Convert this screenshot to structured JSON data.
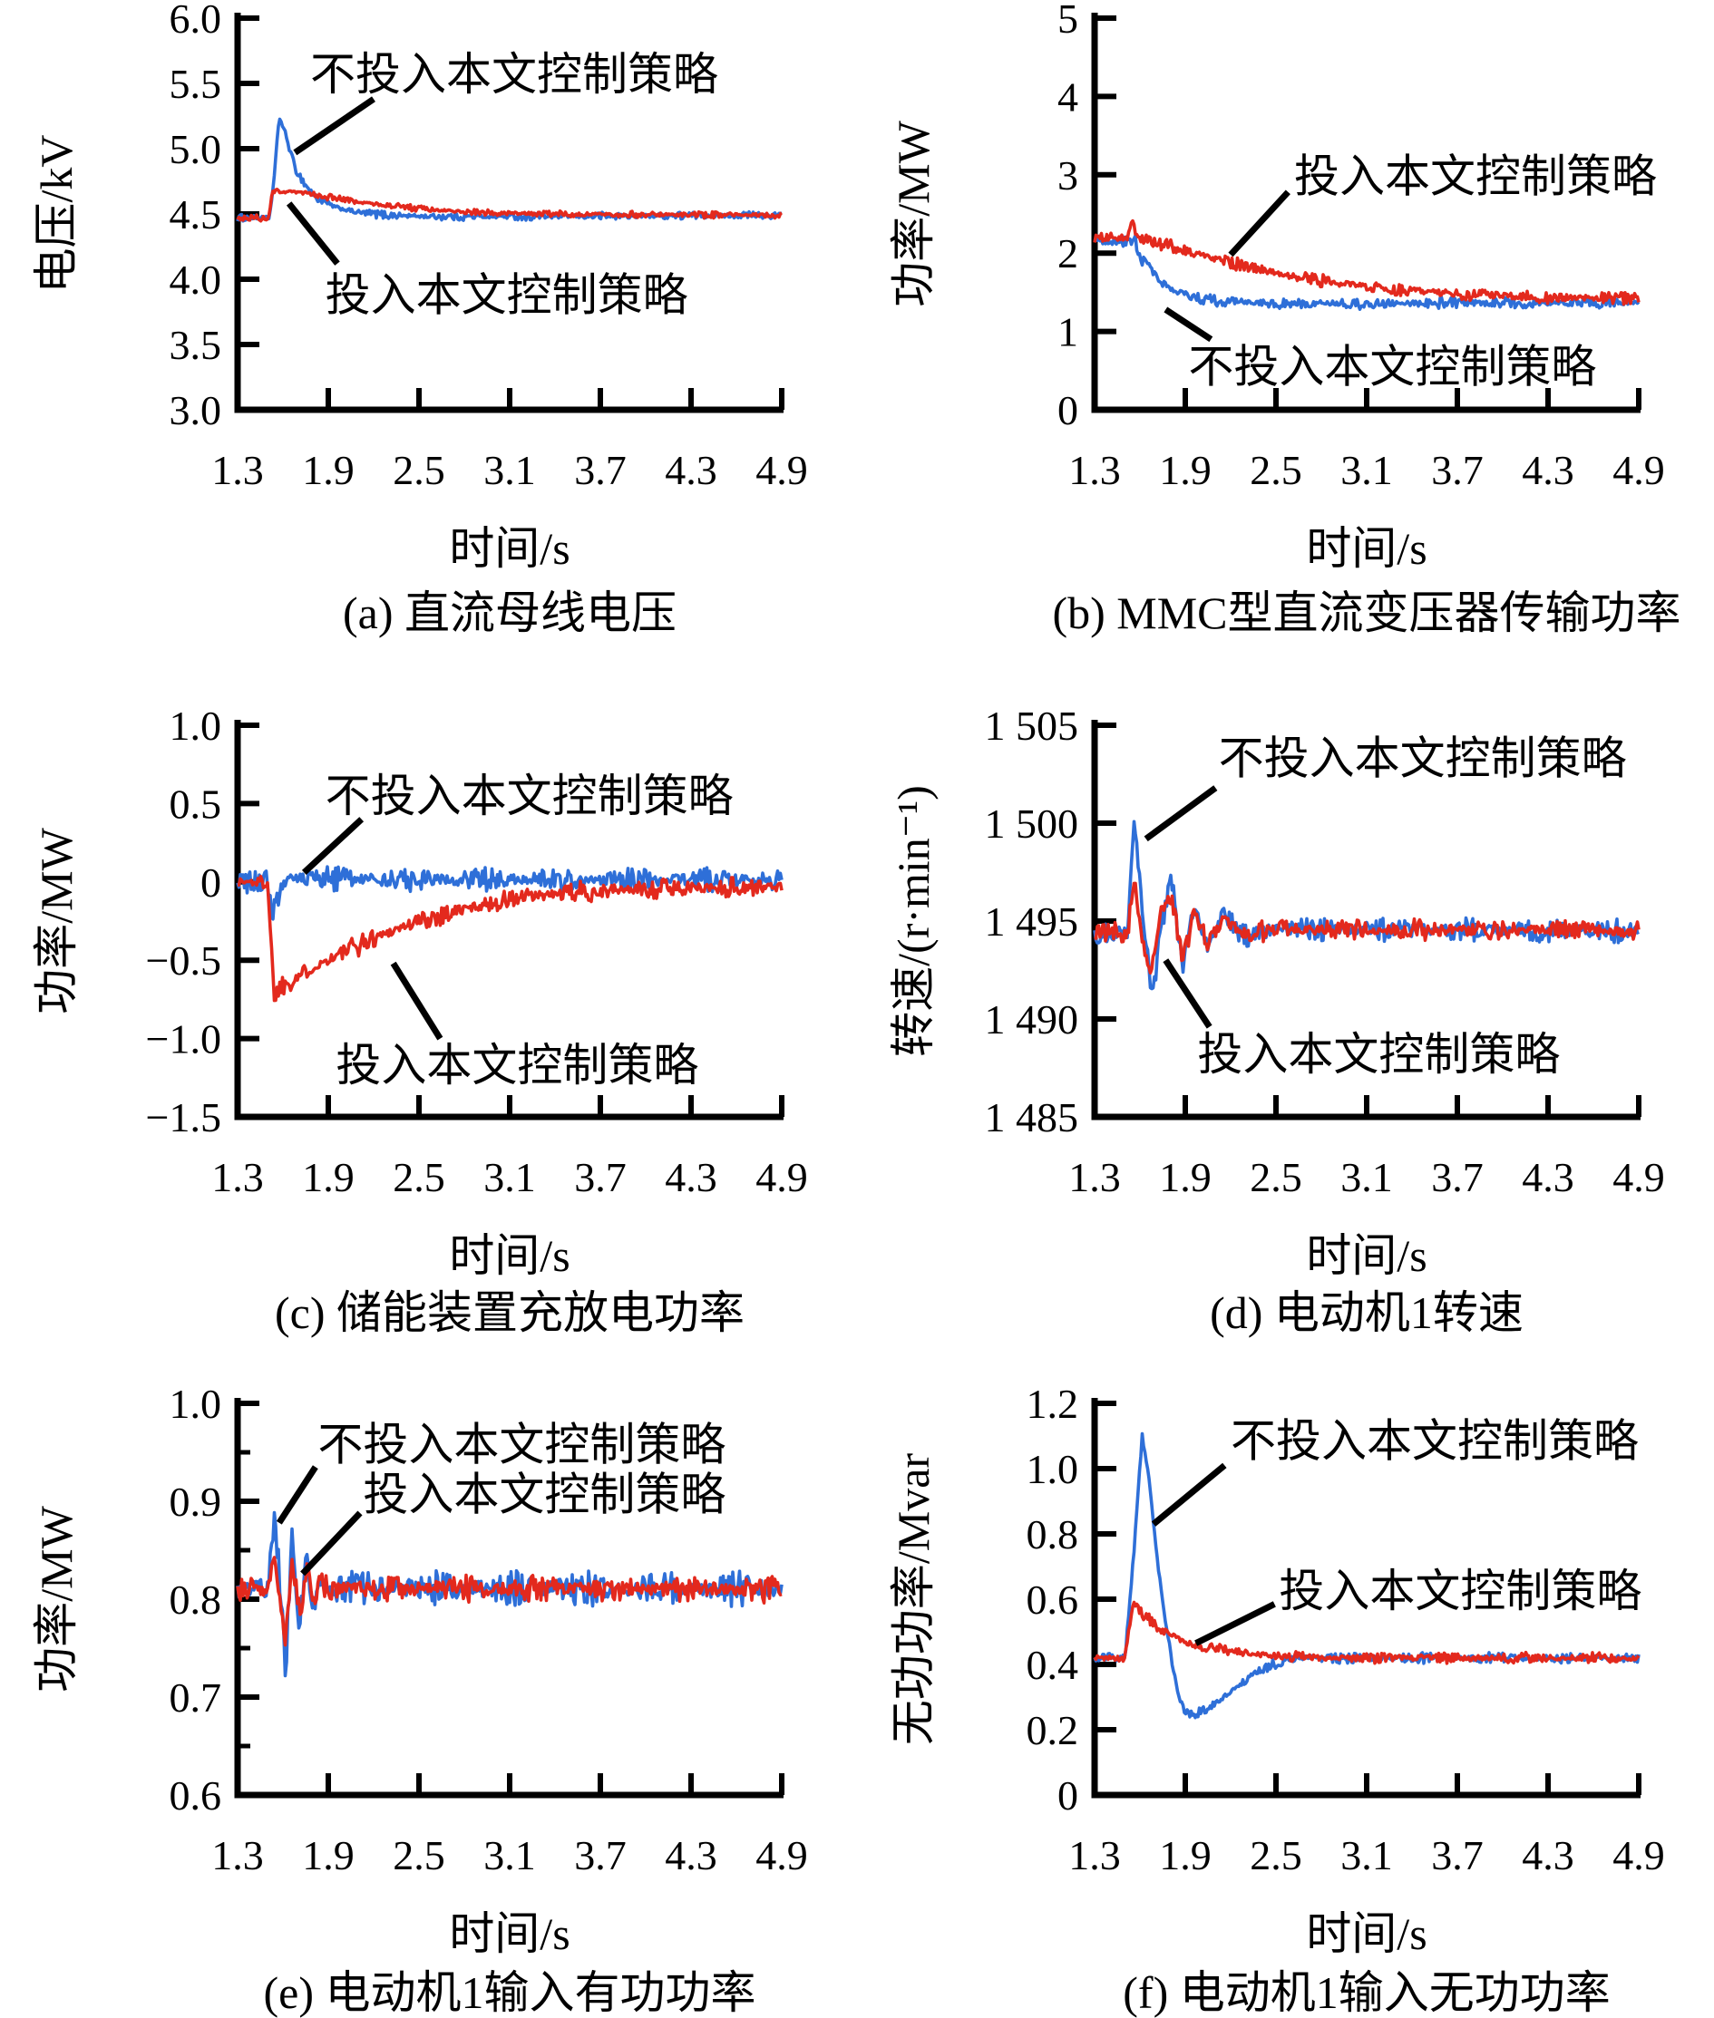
{
  "figure": {
    "background": "#ffffff"
  },
  "colors": {
    "blue": "#2E6FD8",
    "red": "#E3291D",
    "axis": "#000000"
  },
  "legend_labels": {
    "without": "不投入本文控制策略",
    "with": "投入本文控制策略"
  },
  "chart_data": [
    {
      "id": "a",
      "type": "line",
      "caption": "(a) 直流母线电压",
      "xlabel": "时间/s",
      "ylabel": "电压/kV",
      "xlim": [
        1.3,
        4.9
      ],
      "ylim": [
        3.0,
        6.0
      ],
      "xtick_values": [
        1.3,
        1.9,
        2.5,
        3.1,
        3.7,
        4.3,
        4.9
      ],
      "xtick_labels": [
        "1.3",
        "1.9",
        "2.5",
        "3.1",
        "3.7",
        "4.3",
        "4.9"
      ],
      "ytick_values": [
        6.0,
        5.5,
        5.0,
        4.5,
        4.0,
        3.5,
        3.0
      ],
      "ytick_labels": [
        "6.0",
        "5.5",
        "5.0",
        "4.5",
        "4.0",
        "3.5",
        "3.0"
      ],
      "series": [
        {
          "name": "不投入本文控制策略",
          "color": "blue",
          "noise": 0.022,
          "keypoints": [
            [
              1.3,
              4.47
            ],
            [
              1.51,
              4.47
            ],
            [
              1.54,
              4.75
            ],
            [
              1.575,
              5.25
            ],
            [
              1.62,
              5.1
            ],
            [
              1.68,
              4.85
            ],
            [
              1.75,
              4.72
            ],
            [
              1.82,
              4.62
            ],
            [
              1.95,
              4.55
            ],
            [
              2.1,
              4.51
            ],
            [
              2.3,
              4.49
            ],
            [
              2.6,
              4.48
            ],
            [
              3.0,
              4.48
            ],
            [
              4.9,
              4.49
            ]
          ]
        },
        {
          "name": "投入本文控制策略",
          "color": "red",
          "noise": 0.018,
          "keypoints": [
            [
              1.3,
              4.47
            ],
            [
              1.51,
              4.47
            ],
            [
              1.53,
              4.68
            ],
            [
              1.62,
              4.67
            ],
            [
              1.75,
              4.66
            ],
            [
              1.9,
              4.63
            ],
            [
              2.1,
              4.59
            ],
            [
              2.35,
              4.56
            ],
            [
              2.6,
              4.53
            ],
            [
              2.9,
              4.51
            ],
            [
              3.3,
              4.5
            ],
            [
              4.9,
              4.49
            ]
          ]
        }
      ],
      "annotations": [
        {
          "text": "不投入本文控制策略",
          "x": 1.78,
          "y": 5.57,
          "line": [
            2.2,
            5.38,
            1.68,
            4.97
          ]
        },
        {
          "text": "投入本文控制策略",
          "x": 1.88,
          "y": 3.88,
          "line": [
            1.64,
            4.58,
            1.96,
            4.12
          ]
        }
      ]
    },
    {
      "id": "b",
      "type": "line",
      "caption": "(b) MMC型直流变压器传输功率",
      "xlabel": "时间/s",
      "ylabel": "功率/MW",
      "xlim": [
        1.3,
        4.9
      ],
      "ylim": [
        0,
        5
      ],
      "xtick_values": [
        1.3,
        1.9,
        2.5,
        3.1,
        3.7,
        4.3,
        4.9
      ],
      "xtick_labels": [
        "1.3",
        "1.9",
        "2.5",
        "3.1",
        "3.7",
        "4.3",
        "4.9"
      ],
      "ytick_values": [
        5,
        4,
        3,
        2,
        1,
        0
      ],
      "ytick_labels": [
        "5",
        "4",
        "3",
        "2",
        "1",
        "0"
      ],
      "series": [
        {
          "name": "不投入本文控制策略",
          "color": "blue",
          "noise": 0.055,
          "keypoints": [
            [
              1.3,
              2.15
            ],
            [
              1.52,
              2.15
            ],
            [
              1.56,
              2.2
            ],
            [
              1.62,
              1.9
            ],
            [
              1.72,
              1.65
            ],
            [
              1.85,
              1.5
            ],
            [
              2.0,
              1.42
            ],
            [
              2.2,
              1.38
            ],
            [
              2.5,
              1.36
            ],
            [
              3.0,
              1.36
            ],
            [
              4.9,
              1.37
            ]
          ]
        },
        {
          "name": "投入本文控制策略",
          "color": "red",
          "noise": 0.06,
          "keypoints": [
            [
              1.3,
              2.2
            ],
            [
              1.52,
              2.2
            ],
            [
              1.55,
              2.42
            ],
            [
              1.58,
              2.2
            ],
            [
              1.75,
              2.12
            ],
            [
              1.95,
              2.0
            ],
            [
              2.2,
              1.88
            ],
            [
              2.5,
              1.75
            ],
            [
              2.8,
              1.65
            ],
            [
              3.1,
              1.57
            ],
            [
              3.4,
              1.52
            ],
            [
              3.8,
              1.47
            ],
            [
              4.3,
              1.44
            ],
            [
              4.9,
              1.42
            ]
          ]
        }
      ],
      "annotations": [
        {
          "text": "投入本文控制策略",
          "x": 2.62,
          "y": 2.98,
          "line": [
            2.2,
            1.98,
            2.58,
            2.78
          ]
        },
        {
          "text": "不投入本文控制策略",
          "x": 1.92,
          "y": 0.55,
          "line": [
            1.77,
            1.28,
            2.07,
            0.9
          ]
        }
      ]
    },
    {
      "id": "c",
      "type": "line",
      "caption": "(c) 储能装置充放电功率",
      "xlabel": "时间/s",
      "ylabel": "功率/MW",
      "xlim": [
        1.3,
        4.9
      ],
      "ylim": [
        -1.5,
        1.0
      ],
      "xtick_values": [
        1.3,
        1.9,
        2.5,
        3.1,
        3.7,
        4.3,
        4.9
      ],
      "xtick_labels": [
        "1.3",
        "1.9",
        "2.5",
        "3.1",
        "3.7",
        "4.3",
        "4.9"
      ],
      "ytick_values": [
        1.0,
        0.5,
        0,
        -0.5,
        -1.0,
        -1.5
      ],
      "ytick_labels": [
        "1.0",
        "0.5",
        "0",
        "−0.5",
        "−1.0",
        "−1.5"
      ],
      "series": [
        {
          "name": "不投入本文控制策略",
          "color": "blue",
          "noise": 0.055,
          "keypoints": [
            [
              1.3,
              0.0
            ],
            [
              1.5,
              0.0
            ],
            [
              1.53,
              -0.2
            ],
            [
              1.57,
              -0.1
            ],
            [
              1.62,
              0.02
            ],
            [
              1.8,
              0.02
            ],
            [
              4.9,
              0.01
            ]
          ]
        },
        {
          "name": "投入本文控制策略",
          "color": "red",
          "noise": 0.05,
          "keypoints": [
            [
              1.3,
              0.0
            ],
            [
              1.5,
              0.0
            ],
            [
              1.54,
              -0.72
            ],
            [
              1.6,
              -0.65
            ],
            [
              1.7,
              -0.6
            ],
            [
              1.85,
              -0.52
            ],
            [
              2.0,
              -0.45
            ],
            [
              2.15,
              -0.38
            ],
            [
              2.35,
              -0.3
            ],
            [
              2.6,
              -0.22
            ],
            [
              2.9,
              -0.15
            ],
            [
              3.2,
              -0.1
            ],
            [
              3.6,
              -0.06
            ],
            [
              4.1,
              -0.04
            ],
            [
              4.9,
              -0.03
            ]
          ]
        }
      ],
      "annotations": [
        {
          "text": "不投入本文控制策略",
          "x": 1.88,
          "y": 0.55,
          "line": [
            1.74,
            0.06,
            2.12,
            0.4
          ]
        },
        {
          "text": "投入本文控制策略",
          "x": 1.95,
          "y": -1.17,
          "line": [
            2.33,
            -0.52,
            2.64,
            -1.0
          ]
        }
      ]
    },
    {
      "id": "d",
      "type": "line",
      "caption": "(d) 电动机1转速",
      "xlabel": "时间/s",
      "ylabel": "转速/(r·min⁻¹)",
      "xlim": [
        1.3,
        4.9
      ],
      "ylim": [
        1485,
        1505
      ],
      "xtick_values": [
        1.3,
        1.9,
        2.5,
        3.1,
        3.7,
        4.3,
        4.9
      ],
      "xtick_labels": [
        "1.3",
        "1.9",
        "2.5",
        "3.1",
        "3.7",
        "4.3",
        "4.9"
      ],
      "ytick_values": [
        1505,
        1500,
        1495,
        1490,
        1485
      ],
      "ytick_labels": [
        "1 505",
        "1 500",
        "1 495",
        "1 490",
        "1 485"
      ],
      "series": [
        {
          "name": "不投入本文控制策略",
          "color": "blue",
          "noise": 0.45,
          "keypoints": [
            [
              1.3,
              1494.4
            ],
            [
              1.52,
              1494.4
            ],
            [
              1.56,
              1500.3
            ],
            [
              1.63,
              1494.5
            ],
            [
              1.68,
              1491.2
            ],
            [
              1.75,
              1495.0
            ],
            [
              1.81,
              1497.0
            ],
            [
              1.88,
              1492.6
            ],
            [
              1.96,
              1495.8
            ],
            [
              2.05,
              1493.6
            ],
            [
              2.15,
              1495.3
            ],
            [
              2.3,
              1494.2
            ],
            [
              2.5,
              1494.6
            ],
            [
              4.9,
              1494.5
            ]
          ]
        },
        {
          "name": "投入本文控制策略",
          "color": "red",
          "noise": 0.4,
          "keypoints": [
            [
              1.3,
              1494.4
            ],
            [
              1.52,
              1494.4
            ],
            [
              1.56,
              1497.2
            ],
            [
              1.62,
              1493.8
            ],
            [
              1.67,
              1492.2
            ],
            [
              1.74,
              1495.5
            ],
            [
              1.81,
              1496.3
            ],
            [
              1.88,
              1493.0
            ],
            [
              1.96,
              1495.5
            ],
            [
              2.05,
              1493.9
            ],
            [
              2.15,
              1495.1
            ],
            [
              2.3,
              1494.3
            ],
            [
              2.5,
              1494.6
            ],
            [
              4.9,
              1494.5
            ]
          ]
        }
      ],
      "annotations": [
        {
          "text": "不投入本文控制策略",
          "x": 2.12,
          "y": 1503.3,
          "line": [
            1.64,
            1499.2,
            2.1,
            1501.8
          ]
        },
        {
          "text": "投入本文控制策略",
          "x": 1.98,
          "y": 1488.2,
          "line": [
            1.77,
            1493.0,
            2.06,
            1489.6
          ]
        }
      ]
    },
    {
      "id": "e",
      "type": "line",
      "caption": "(e) 电动机1输入有功功率",
      "xlabel": "时间/s",
      "ylabel": "功率/MW",
      "xlim": [
        1.3,
        4.9
      ],
      "ylim": [
        0.6,
        1.0
      ],
      "xtick_values": [
        1.3,
        1.9,
        2.5,
        3.1,
        3.7,
        4.3,
        4.9
      ],
      "xtick_labels": [
        "1.3",
        "1.9",
        "2.5",
        "3.1",
        "3.7",
        "4.3",
        "4.9"
      ],
      "ytick_values": [
        1.0,
        0.9,
        0.8,
        0.7,
        0.6
      ],
      "ytick_labels": [
        "1.0",
        "0.9",
        "0.8",
        "0.7",
        "0.6"
      ],
      "ytick_minor": [
        0.95,
        0.85,
        0.75,
        0.65
      ],
      "series": [
        {
          "name": "不投入本文控制策略",
          "color": "blue",
          "noise": 0.013,
          "keypoints": [
            [
              1.3,
              0.81
            ],
            [
              1.5,
              0.81
            ],
            [
              1.545,
              0.893
            ],
            [
              1.585,
              0.8
            ],
            [
              1.615,
              0.727
            ],
            [
              1.66,
              0.855
            ],
            [
              1.71,
              0.775
            ],
            [
              1.755,
              0.843
            ],
            [
              1.8,
              0.787
            ],
            [
              1.85,
              0.822
            ],
            [
              1.92,
              0.805
            ],
            [
              2.0,
              0.812
            ],
            [
              4.9,
              0.81
            ]
          ]
        },
        {
          "name": "投入本文控制策略",
          "color": "red",
          "noise": 0.01,
          "keypoints": [
            [
              1.3,
              0.81
            ],
            [
              1.5,
              0.81
            ],
            [
              1.545,
              0.845
            ],
            [
              1.585,
              0.792
            ],
            [
              1.615,
              0.757
            ],
            [
              1.66,
              0.838
            ],
            [
              1.71,
              0.785
            ],
            [
              1.755,
              0.832
            ],
            [
              1.8,
              0.795
            ],
            [
              1.85,
              0.817
            ],
            [
              1.92,
              0.808
            ],
            [
              2.0,
              0.811
            ],
            [
              4.9,
              0.81
            ]
          ]
        }
      ],
      "annotations": [
        {
          "text": "不投入本文控制策略",
          "x": 1.83,
          "y": 0.958,
          "line": [
            1.575,
            0.878,
            1.815,
            0.935
          ]
        },
        {
          "text": "投入本文控制策略",
          "x": 2.13,
          "y": 0.907,
          "line": [
            1.73,
            0.826,
            2.11,
            0.888
          ]
        }
      ]
    },
    {
      "id": "f",
      "type": "line",
      "caption": "(f) 电动机1输入无功功率",
      "xlabel": "时间/s",
      "ylabel": "无功功率/Mvar",
      "xlim": [
        1.3,
        4.9
      ],
      "ylim": [
        0,
        1.2
      ],
      "xtick_values": [
        1.3,
        1.9,
        2.5,
        3.1,
        3.7,
        4.3,
        4.9
      ],
      "xtick_labels": [
        "1.3",
        "1.9",
        "2.5",
        "3.1",
        "3.7",
        "4.3",
        "4.9"
      ],
      "ytick_values": [
        1.2,
        1.0,
        0.8,
        0.6,
        0.4,
        0.2,
        0
      ],
      "ytick_labels": [
        "1.2",
        "1.0",
        "0.8",
        "0.6",
        "0.4",
        "0.2",
        "0"
      ],
      "series": [
        {
          "name": "不投入本文控制策略",
          "color": "blue",
          "noise": 0.012,
          "keypoints": [
            [
              1.3,
              0.42
            ],
            [
              1.5,
              0.42
            ],
            [
              1.56,
              0.75
            ],
            [
              1.615,
              1.1
            ],
            [
              1.66,
              0.97
            ],
            [
              1.72,
              0.7
            ],
            [
              1.78,
              0.5
            ],
            [
              1.84,
              0.33
            ],
            [
              1.9,
              0.26
            ],
            [
              1.97,
              0.245
            ],
            [
              2.07,
              0.27
            ],
            [
              2.2,
              0.315
            ],
            [
              2.35,
              0.37
            ],
            [
              2.5,
              0.405
            ],
            [
              2.65,
              0.42
            ],
            [
              4.9,
              0.42
            ]
          ]
        },
        {
          "name": "投入本文控制策略",
          "color": "red",
          "noise": 0.012,
          "keypoints": [
            [
              1.3,
              0.42
            ],
            [
              1.5,
              0.42
            ],
            [
              1.555,
              0.6
            ],
            [
              1.62,
              0.555
            ],
            [
              1.7,
              0.52
            ],
            [
              1.8,
              0.49
            ],
            [
              1.92,
              0.465
            ],
            [
              2.05,
              0.45
            ],
            [
              2.2,
              0.44
            ],
            [
              2.4,
              0.43
            ],
            [
              2.7,
              0.42
            ],
            [
              4.9,
              0.42
            ]
          ]
        }
      ],
      "annotations": [
        {
          "text": "不投入本文控制策略",
          "x": 2.2,
          "y": 1.085,
          "line": [
            1.69,
            0.83,
            2.16,
            1.01
          ]
        },
        {
          "text": "投入本文控制策略",
          "x": 2.52,
          "y": 0.625,
          "line": [
            1.97,
            0.465,
            2.49,
            0.585
          ]
        }
      ]
    }
  ]
}
